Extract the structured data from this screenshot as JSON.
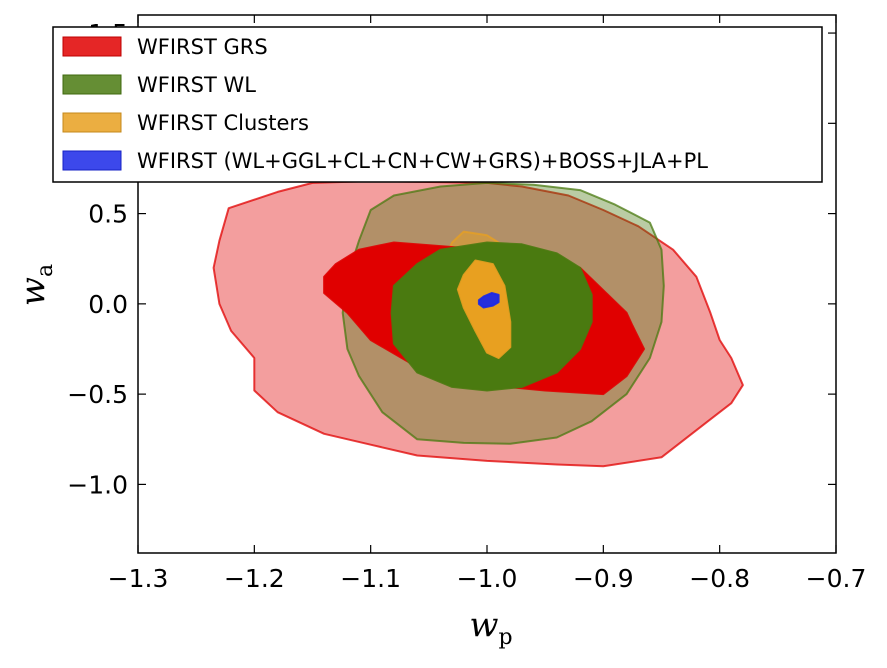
{
  "chart_data": {
    "type": "contour",
    "xlabel": "w",
    "xlabel_sub": "p",
    "ylabel": "w",
    "ylabel_sub": "a",
    "xlim": [
      -1.3,
      -0.7
    ],
    "ylim": [
      -1.38,
      1.6
    ],
    "xticks": [
      -1.3,
      -1.2,
      -1.1,
      -1.0,
      -0.9,
      -0.8,
      -0.7
    ],
    "xtick_labels": [
      "−1.3",
      "−1.2",
      "−1.1",
      "−1.0",
      "−0.9",
      "−0.8",
      "−0.7"
    ],
    "yticks": [
      -1.0,
      -0.5,
      0.0,
      0.5,
      1.0,
      1.5
    ],
    "ytick_labels": [
      "−1.0",
      "−0.5",
      "0.0",
      "0.5",
      "1.0",
      "1.5"
    ],
    "grid": false,
    "legend_position": "top",
    "series": [
      {
        "name": "WFIRST GRS",
        "color": "#e00000",
        "contours": [
          {
            "level": "outer",
            "opacity": 0.38,
            "points": [
              [
                -1.222,
                0.53
              ],
              [
                -1.18,
                0.62
              ],
              [
                -1.15,
                0.67
              ],
              [
                -1.1,
                0.68
              ],
              [
                -1.05,
                0.675
              ],
              [
                -1.0,
                0.67
              ],
              [
                -0.97,
                0.65
              ],
              [
                -0.93,
                0.6
              ],
              [
                -0.9,
                0.52
              ],
              [
                -0.87,
                0.43
              ],
              [
                -0.84,
                0.3
              ],
              [
                -0.82,
                0.15
              ],
              [
                -0.808,
                -0.05
              ],
              [
                -0.8,
                -0.2
              ],
              [
                -0.79,
                -0.3
              ],
              [
                -0.78,
                -0.45
              ],
              [
                -0.79,
                -0.55
              ],
              [
                -0.81,
                -0.65
              ],
              [
                -0.85,
                -0.85
              ],
              [
                -0.9,
                -0.9
              ],
              [
                -0.94,
                -0.89
              ],
              [
                -1.0,
                -0.87
              ],
              [
                -1.06,
                -0.84
              ],
              [
                -1.1,
                -0.78
              ],
              [
                -1.14,
                -0.72
              ],
              [
                -1.18,
                -0.6
              ],
              [
                -1.2,
                -0.48
              ],
              [
                -1.2,
                -0.3
              ],
              [
                -1.22,
                -0.15
              ],
              [
                -1.23,
                0.0
              ],
              [
                -1.235,
                0.2
              ],
              [
                -1.23,
                0.35
              ]
            ]
          },
          {
            "level": "inner",
            "opacity": 1.0,
            "points": [
              [
                -1.13,
                0.22
              ],
              [
                -1.11,
                0.3
              ],
              [
                -1.08,
                0.34
              ],
              [
                -1.0,
                0.3
              ],
              [
                -0.92,
                0.2
              ],
              [
                -0.88,
                -0.05
              ],
              [
                -0.875,
                -0.12
              ],
              [
                -0.865,
                -0.25
              ],
              [
                -0.88,
                -0.4
              ],
              [
                -0.9,
                -0.5
              ],
              [
                -0.95,
                -0.48
              ],
              [
                -1.0,
                -0.45
              ],
              [
                -1.06,
                -0.35
              ],
              [
                -1.1,
                -0.2
              ],
              [
                -1.12,
                -0.05
              ],
              [
                -1.14,
                0.06
              ],
              [
                -1.14,
                0.15
              ]
            ]
          }
        ]
      },
      {
        "name": "WFIRST WL",
        "color": "#4a7a10",
        "contours": [
          {
            "level": "outer",
            "opacity": 0.38,
            "points": [
              [
                -1.1,
                0.52
              ],
              [
                -1.08,
                0.6
              ],
              [
                -1.04,
                0.65
              ],
              [
                -1.0,
                0.67
              ],
              [
                -0.96,
                0.66
              ],
              [
                -0.92,
                0.63
              ],
              [
                -0.89,
                0.55
              ],
              [
                -0.86,
                0.45
              ],
              [
                -0.85,
                0.3
              ],
              [
                -0.848,
                0.1
              ],
              [
                -0.85,
                -0.1
              ],
              [
                -0.86,
                -0.3
              ],
              [
                -0.88,
                -0.5
              ],
              [
                -0.91,
                -0.65
              ],
              [
                -0.94,
                -0.74
              ],
              [
                -0.98,
                -0.775
              ],
              [
                -1.02,
                -0.77
              ],
              [
                -1.06,
                -0.75
              ],
              [
                -1.09,
                -0.6
              ],
              [
                -1.11,
                -0.4
              ],
              [
                -1.12,
                -0.25
              ],
              [
                -1.124,
                -0.05
              ],
              [
                -1.12,
                0.15
              ],
              [
                -1.11,
                0.35
              ]
            ]
          },
          {
            "level": "inner",
            "opacity": 1.0,
            "points": [
              [
                -1.06,
                0.22
              ],
              [
                -1.04,
                0.3
              ],
              [
                -1.0,
                0.34
              ],
              [
                -0.97,
                0.33
              ],
              [
                -0.94,
                0.28
              ],
              [
                -0.92,
                0.2
              ],
              [
                -0.91,
                0.05
              ],
              [
                -0.91,
                -0.1
              ],
              [
                -0.92,
                -0.25
              ],
              [
                -0.94,
                -0.38
              ],
              [
                -0.97,
                -0.46
              ],
              [
                -1.0,
                -0.48
              ],
              [
                -1.03,
                -0.46
              ],
              [
                -1.06,
                -0.38
              ],
              [
                -1.08,
                -0.22
              ],
              [
                -1.082,
                -0.05
              ],
              [
                -1.08,
                0.1
              ]
            ]
          }
        ]
      },
      {
        "name": "WFIRST Clusters",
        "color": "#e8a020",
        "contours": [
          {
            "level": "outer",
            "opacity": 0.48,
            "points": [
              [
                -1.03,
                0.34
              ],
              [
                -1.02,
                0.4
              ],
              [
                -1.0,
                0.38
              ],
              [
                -0.985,
                0.32
              ],
              [
                -0.975,
                0.1
              ],
              [
                -0.965,
                -0.1
              ],
              [
                -0.96,
                -0.25
              ],
              [
                -0.965,
                -0.38
              ],
              [
                -0.98,
                -0.43
              ],
              [
                -1.0,
                -0.4
              ],
              [
                -1.02,
                -0.25
              ],
              [
                -1.035,
                -0.1
              ],
              [
                -1.04,
                0.05
              ],
              [
                -1.04,
                0.2
              ]
            ]
          },
          {
            "level": "inner",
            "opacity": 1.0,
            "points": [
              [
                -1.02,
                0.16
              ],
              [
                -1.01,
                0.24
              ],
              [
                -0.995,
                0.22
              ],
              [
                -0.985,
                0.1
              ],
              [
                -0.98,
                -0.1
              ],
              [
                -0.98,
                -0.24
              ],
              [
                -0.99,
                -0.3
              ],
              [
                -1.0,
                -0.27
              ],
              [
                -1.01,
                -0.15
              ],
              [
                -1.02,
                -0.02
              ],
              [
                -1.025,
                0.08
              ]
            ]
          }
        ]
      },
      {
        "name": "WFIRST (WL+GGL+CL+CN+CW+GRS)+BOSS+JLA+PL",
        "color": "#1a28e8",
        "contours": [
          {
            "level": "outer",
            "opacity": 0.45,
            "points": [
              [
                -1.01,
                0.05
              ],
              [
                -1.0,
                0.1
              ],
              [
                -0.99,
                0.1
              ],
              [
                -0.985,
                0.06
              ],
              [
                -0.985,
                0.01
              ],
              [
                -0.99,
                -0.03
              ],
              [
                -1.0,
                -0.06
              ],
              [
                -1.01,
                -0.05
              ],
              [
                -1.015,
                -0.01
              ],
              [
                -1.013,
                0.03
              ]
            ]
          },
          {
            "level": "inner",
            "opacity": 0.95,
            "points": [
              [
                -1.003,
                0.04
              ],
              [
                -0.996,
                0.06
              ],
              [
                -0.99,
                0.05
              ],
              [
                -0.99,
                0.01
              ],
              [
                -0.995,
                -0.01
              ],
              [
                -1.003,
                -0.02
              ],
              [
                -1.007,
                0.0
              ],
              [
                -1.007,
                0.02
              ]
            ]
          }
        ]
      }
    ]
  }
}
